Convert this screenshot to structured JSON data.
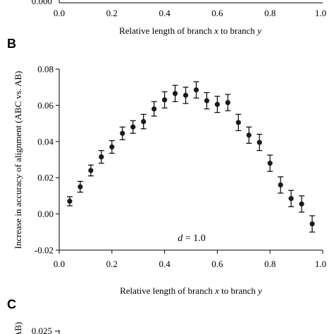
{
  "panel_a": {
    "partial_tick_label": "0.000",
    "x_ticks": [
      "0.0",
      "0.2",
      "0.4",
      "0.6",
      "0.8",
      "1.0"
    ],
    "xlabel_prefix": "Relative length of branch ",
    "xlabel_var1": "x",
    "xlabel_mid": " to branch ",
    "xlabel_var2": "y"
  },
  "panel_b": {
    "label": "B",
    "annotation_var": "d",
    "annotation_value": " = 1.0",
    "xlabel_prefix": "Relative length of branch ",
    "xlabel_var1": "x",
    "xlabel_mid": " to branch ",
    "xlabel_var2": "y"
  },
  "panel_c": {
    "label": "C",
    "partial_tick_label": "0.025",
    "partial_ylabel": "AB)"
  },
  "colors": {
    "marker": "#1a1a1a",
    "axis": "#000000"
  },
  "chart_data": {
    "type": "scatter",
    "title": "",
    "xlabel": "Relative length of branch x to branch y",
    "ylabel": "Increase in accuracy of alignment (ABC vs. AB)",
    "xlim": [
      0.0,
      1.0
    ],
    "ylim": [
      -0.02,
      0.08
    ],
    "x_ticks": [
      0.0,
      0.2,
      0.4,
      0.6,
      0.8,
      1.0
    ],
    "y_ticks": [
      -0.02,
      0.0,
      0.02,
      0.04,
      0.06,
      0.08
    ],
    "x_tick_labels": [
      "0.0",
      "0.2",
      "0.4",
      "0.6",
      "0.8",
      "1.0"
    ],
    "y_tick_labels": [
      "-0.02",
      "0.00",
      "0.02",
      "0.04",
      "0.06",
      "0.08"
    ],
    "grid": false,
    "series": [
      {
        "x": [
          0.04,
          0.08,
          0.12,
          0.16,
          0.2,
          0.24,
          0.28,
          0.32,
          0.36,
          0.4,
          0.44,
          0.48,
          0.52,
          0.56,
          0.6,
          0.64,
          0.68,
          0.72,
          0.76,
          0.8,
          0.84,
          0.88,
          0.92,
          0.96
        ],
        "y": [
          0.007,
          0.015,
          0.024,
          0.0315,
          0.037,
          0.0445,
          0.048,
          0.051,
          0.058,
          0.063,
          0.0665,
          0.0655,
          0.0685,
          0.0625,
          0.0605,
          0.0615,
          0.0505,
          0.0435,
          0.0395,
          0.028,
          0.016,
          0.0085,
          0.0055,
          -0.0055
        ],
        "error": [
          0.0025,
          0.003,
          0.003,
          0.0035,
          0.0035,
          0.0035,
          0.0035,
          0.004,
          0.004,
          0.0045,
          0.0045,
          0.0045,
          0.0045,
          0.0045,
          0.0045,
          0.0045,
          0.0045,
          0.0045,
          0.0045,
          0.0045,
          0.0045,
          0.0045,
          0.0045,
          0.0045
        ]
      }
    ],
    "annotations": [
      "d = 1.0"
    ]
  }
}
